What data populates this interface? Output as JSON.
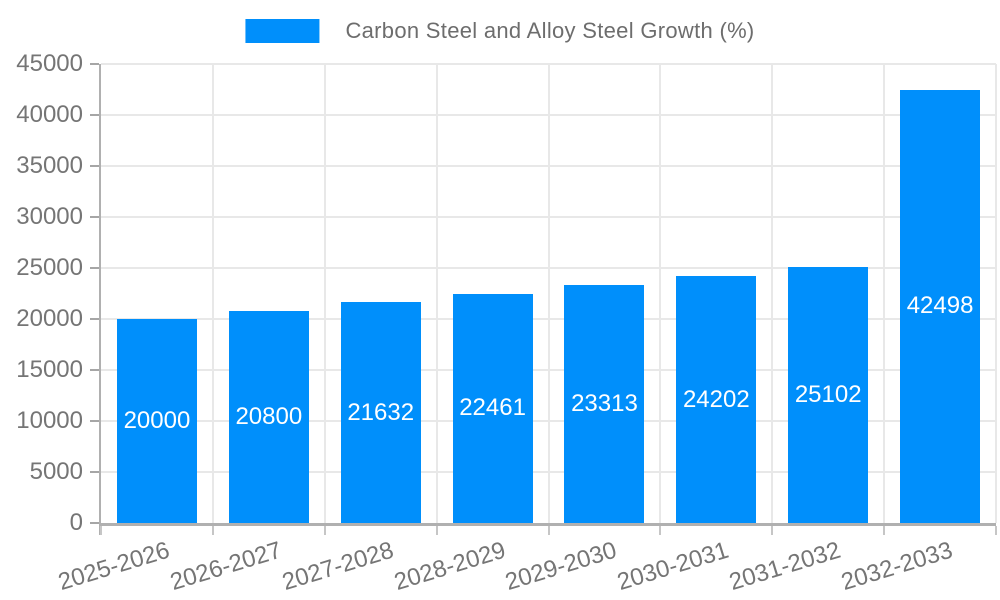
{
  "chart_data": {
    "type": "bar",
    "title": "Carbon Steel and Alloy Steel Growth (%)",
    "categories": [
      "2025-2026",
      "2026-2027",
      "2027-2028",
      "2028-2029",
      "2029-2030",
      "2030-2031",
      "2031-2032",
      "2032-2033"
    ],
    "series": [
      {
        "name": "Carbon Steel and Alloy Steel Growth (%)",
        "values": [
          20000,
          20800,
          21632,
          22461,
          23313,
          24202,
          25102,
          42498
        ]
      }
    ],
    "xlabel": "",
    "ylabel": "",
    "ylim": [
      0,
      45000
    ],
    "ytick_step": 5000,
    "ytick_labels": [
      "0",
      "5000",
      "10000",
      "15000",
      "20000",
      "25000",
      "30000",
      "35000",
      "40000",
      "45000"
    ],
    "grid": "on",
    "bar_value_labels_shown": true,
    "legend_position": "top",
    "colors": {
      "bar": "#008FFB",
      "bar_label": "#FFFFFF",
      "axis_text": "#757575",
      "legend_text": "#6D6D6D",
      "gridline": "#E8E8E8",
      "axis_line": "#B0B0B0",
      "y_tick": "#A6A6A6",
      "x_tick": "#C6C6C6",
      "background": "#FFFFFF"
    }
  }
}
